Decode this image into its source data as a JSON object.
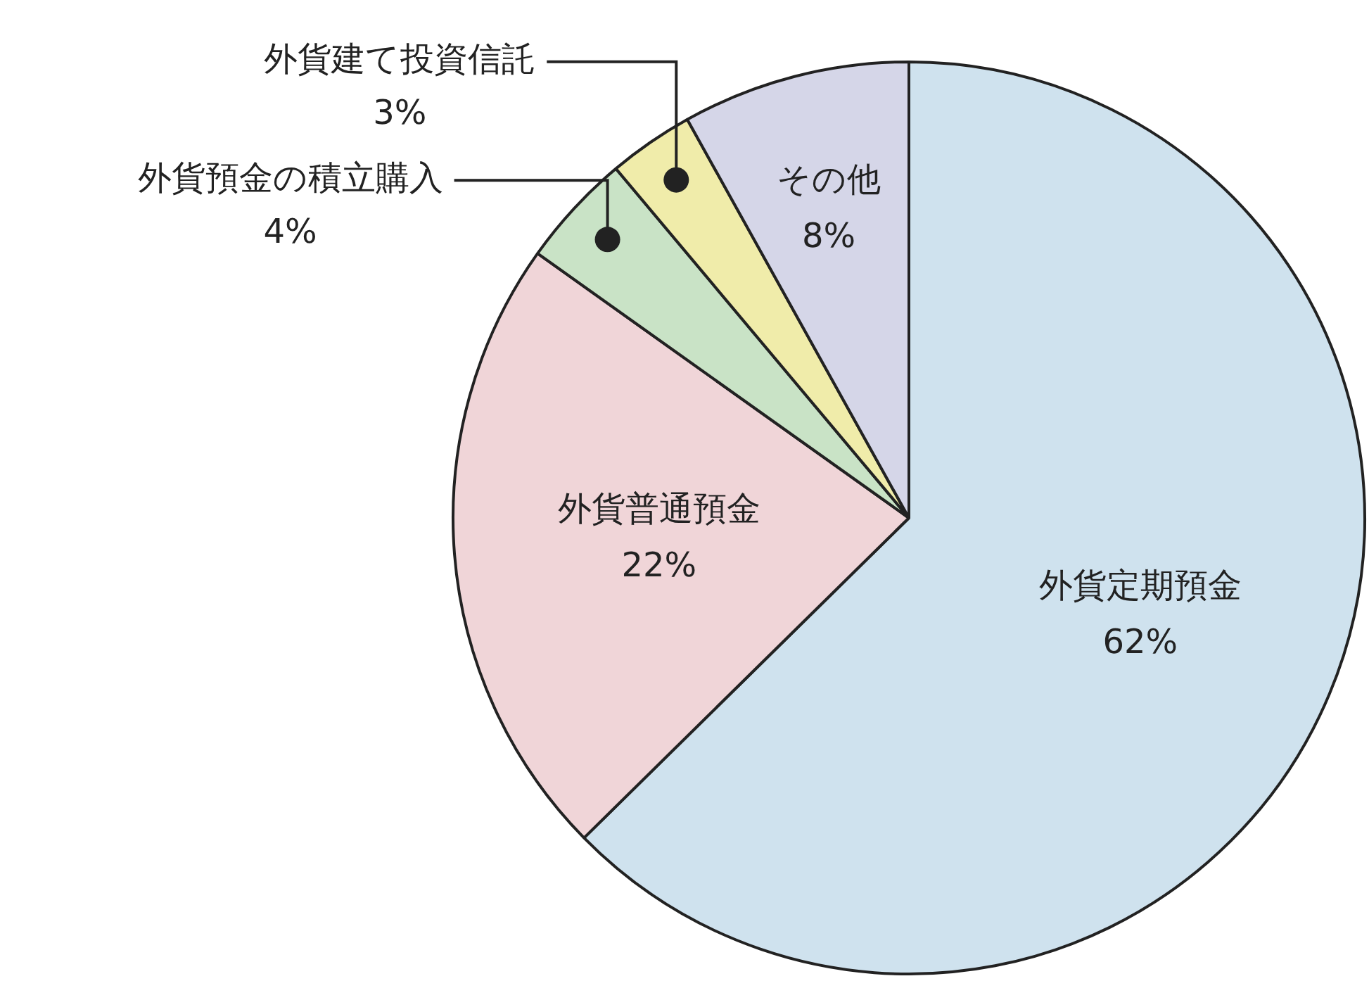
{
  "chart_data": {
    "type": "pie",
    "categories": [
      "外貨定期預金",
      "外貨普通預金",
      "外貨預金の積立購入",
      "外貨建て投資信託",
      "その他"
    ],
    "values": [
      62,
      22,
      4,
      3,
      8
    ],
    "value_labels": [
      "62%",
      "22%",
      "4%",
      "3%",
      "8%"
    ],
    "colors": [
      "#cfe2ee",
      "#f0d5d8",
      "#c9e3c6",
      "#f0ecaa",
      "#d5d6e8"
    ],
    "legend": false
  }
}
